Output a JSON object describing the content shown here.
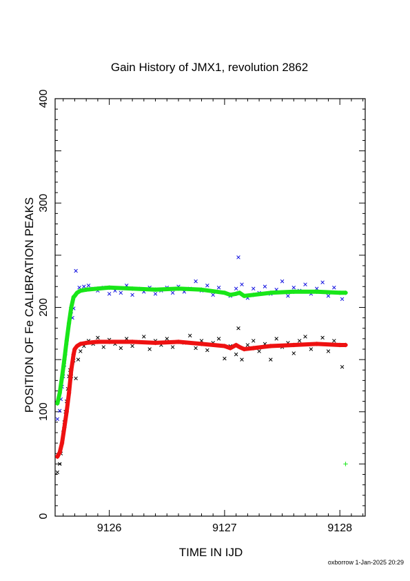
{
  "chart_data": {
    "type": "scatter",
    "title": "Gain History of JMX1, revolution 2862",
    "xlabel": "TIME IN IJD",
    "ylabel": "POSITION OF Fe CALIBRATION PEAKS",
    "xlim": [
      9125.53,
      9128.22
    ],
    "ylim": [
      0,
      400
    ],
    "x_ticks": [
      "9126",
      "9127",
      "9128"
    ],
    "y_ticks": [
      "0",
      "100",
      "200",
      "300",
      "400"
    ],
    "footer": "oxborrow 1-Jan-2025 20:29",
    "colors": {
      "blue": "#1010e0",
      "black": "#000000",
      "green": "#19e619",
      "red": "#ee1111"
    },
    "series": [
      {
        "marker": "x",
        "color": "blue",
        "x": [
          9125.55,
          9125.57,
          9125.58,
          9125.59,
          9125.6,
          9125.61,
          9125.62,
          9125.63,
          9125.64,
          9125.65,
          9125.66,
          9125.67,
          9125.68,
          9125.69,
          9125.71,
          9125.74,
          9125.78,
          9125.82,
          9125.86,
          9125.9,
          9125.95,
          9126.0,
          9126.05,
          9126.1,
          9126.15,
          9126.2,
          9126.25,
          9126.3,
          9126.35,
          9126.4,
          9126.45,
          9126.5,
          9126.55,
          9126.6,
          9126.65,
          9126.7,
          9126.75,
          9126.8,
          9126.85,
          9126.9,
          9126.95,
          9127.0,
          9127.05,
          9127.1,
          9127.12,
          9127.15,
          9127.2,
          9127.25,
          9127.3,
          9127.35,
          9127.4,
          9127.45,
          9127.5,
          9127.55,
          9127.6,
          9127.65,
          9127.7,
          9127.75,
          9127.8,
          9127.85,
          9127.9,
          9127.95,
          9128.02
        ],
        "y": [
          93,
          101,
          112,
          124,
          134,
          145,
          156,
          166,
          176,
          185,
          191,
          196,
          190,
          199,
          235,
          219,
          220,
          221,
          218,
          216,
          219,
          213,
          216,
          214,
          221,
          212,
          218,
          215,
          219,
          213,
          216,
          219,
          214,
          220,
          215,
          218,
          225,
          216,
          221,
          212,
          219,
          214,
          211,
          218,
          248,
          222,
          209,
          218,
          214,
          220,
          213,
          217,
          225,
          211,
          219,
          216,
          222,
          213,
          218,
          224,
          211,
          219,
          208
        ]
      },
      {
        "marker": "x",
        "color": "black",
        "x": [
          9125.55,
          9125.57,
          9125.58,
          9125.59,
          9125.6,
          9125.61,
          9125.62,
          9125.63,
          9125.64,
          9125.65,
          9125.66,
          9125.67,
          9125.68,
          9125.69,
          9125.71,
          9125.73,
          9125.75,
          9125.78,
          9125.82,
          9125.86,
          9125.9,
          9125.95,
          9126.0,
          9126.05,
          9126.1,
          9126.15,
          9126.2,
          9126.25,
          9126.3,
          9126.35,
          9126.4,
          9126.45,
          9126.5,
          9126.55,
          9126.6,
          9126.65,
          9126.7,
          9126.75,
          9126.8,
          9126.85,
          9126.9,
          9126.95,
          9127.0,
          9127.05,
          9127.1,
          9127.12,
          9127.15,
          9127.2,
          9127.25,
          9127.3,
          9127.35,
          9127.4,
          9127.45,
          9127.5,
          9127.55,
          9127.6,
          9127.65,
          9127.7,
          9127.75,
          9127.8,
          9127.85,
          9127.9,
          9127.95,
          9128.02
        ],
        "y": [
          42,
          50,
          60,
          70,
          80,
          90,
          100,
          110,
          122,
          134,
          140,
          134,
          147,
          149,
          132,
          150,
          158,
          163,
          168,
          165,
          171,
          162,
          169,
          165,
          161,
          170,
          163,
          167,
          172,
          160,
          168,
          164,
          170,
          162,
          167,
          166,
          173,
          161,
          168,
          159,
          166,
          170,
          151,
          163,
          155,
          180,
          150,
          164,
          168,
          158,
          165,
          150,
          170,
          162,
          166,
          156,
          168,
          172,
          160,
          165,
          171,
          158,
          168,
          143
        ]
      },
      {
        "marker": "+",
        "color": "green",
        "x": [
          9125.55,
          9125.57,
          9125.59,
          9125.61,
          9125.63,
          9125.65,
          9125.67,
          9125.69,
          9125.7,
          9125.72,
          9125.75,
          9125.8,
          9125.9,
          9126.0,
          9126.2,
          9126.4,
          9126.6,
          9126.8,
          9127.0,
          9127.05,
          9127.1,
          9127.13,
          9127.17,
          9127.25,
          9127.4,
          9127.6,
          9127.8,
          9128.0,
          9128.05
        ],
        "y": [
          108,
          118,
          133,
          150,
          168,
          185,
          200,
          210,
          211,
          214,
          216,
          217,
          218,
          219,
          218,
          217,
          218,
          217,
          214,
          212,
          213,
          214,
          211,
          212,
          214,
          215,
          215,
          214,
          214
        ]
      },
      {
        "marker": "+",
        "color": "red",
        "x": [
          9125.55,
          9125.57,
          9125.59,
          9125.61,
          9125.63,
          9125.65,
          9125.67,
          9125.69,
          9125.7,
          9125.72,
          9125.75,
          9125.8,
          9125.9,
          9126.0,
          9126.2,
          9126.4,
          9126.6,
          9126.8,
          9127.0,
          9127.05,
          9127.1,
          9127.13,
          9127.17,
          9127.25,
          9127.4,
          9127.6,
          9127.8,
          9128.0,
          9128.05
        ],
        "y": [
          57,
          61,
          70,
          85,
          100,
          118,
          140,
          155,
          160,
          163,
          165,
          166,
          167,
          167,
          167,
          166,
          167,
          165,
          163,
          161,
          164,
          162,
          160,
          161,
          163,
          164,
          165,
          164,
          164
        ]
      },
      {
        "marker": "+",
        "color": "green",
        "x": [
          9128.05
        ],
        "y": [
          50
        ]
      }
    ]
  }
}
